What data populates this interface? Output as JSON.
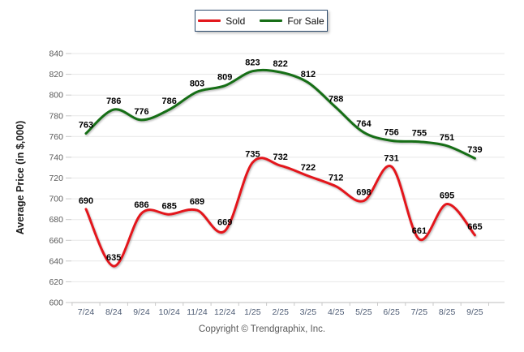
{
  "footer": {
    "copyright": "Copyright © Trendgraphix, Inc."
  },
  "chart_data": {
    "type": "line",
    "title": "",
    "categories": [
      "7/24",
      "8/24",
      "9/24",
      "10/24",
      "11/24",
      "12/24",
      "1/25",
      "2/25",
      "3/25",
      "4/25",
      "5/25",
      "6/25",
      "7/25",
      "8/25",
      "9/25"
    ],
    "series": [
      {
        "name": "Sold",
        "color": "#e3181d",
        "values": [
          690,
          635,
          686,
          685,
          689,
          669,
          735,
          732,
          722,
          712,
          698,
          731,
          661,
          695,
          665
        ]
      },
      {
        "name": "For Sale",
        "color": "#176e17",
        "values": [
          763,
          786,
          776,
          786,
          803,
          809,
          823,
          822,
          812,
          788,
          764,
          756,
          755,
          751,
          739
        ]
      }
    ],
    "xlabel": "",
    "ylabel": "Average Price (in $,000)",
    "ylim": [
      600,
      840
    ],
    "ytick_step": 20,
    "grid": "horizontal",
    "gridline_color": "#e7e7e7",
    "axis_line_color": "#bdbdbd",
    "legend_position": "top-center",
    "data_labels": true,
    "smooth": true
  }
}
